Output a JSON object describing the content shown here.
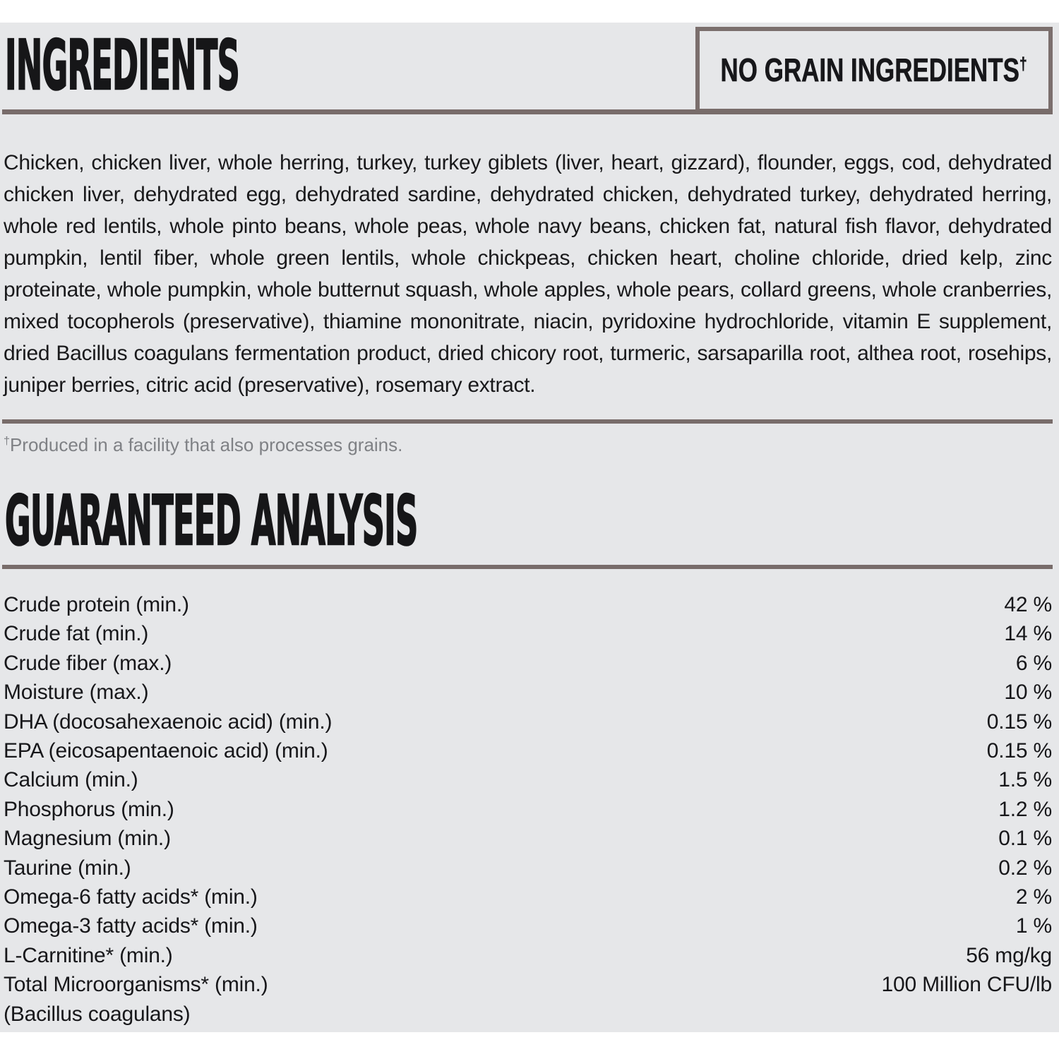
{
  "colors": {
    "panel_bg": "#e6e7e9",
    "rule": "#786c6a",
    "text": "#1b1b1d",
    "footnote_gray": "#7f8185",
    "badge_border": "#7b6f6d"
  },
  "ingredients": {
    "title": "INGREDIENTS",
    "badge_text": "NO GRAIN INGREDIENTS",
    "badge_dagger": "†",
    "body": "Chicken, chicken liver, whole herring, turkey, turkey giblets (liver, heart, gizzard), flounder, eggs, cod, dehydrated chicken liver, dehydrated egg, dehydrated sardine, dehydrated chicken, dehydrated turkey, dehydrated herring, whole red lentils, whole pinto beans, whole peas, whole navy beans, chicken fat, natural fish flavor, dehydrated pumpkin, lentil fiber, whole green lentils, whole chickpeas, chicken heart, choline chloride, dried kelp, zinc proteinate, whole pumpkin, whole butternut squash, whole apples, whole pears, collard greens, whole cranberries, mixed tocopherols (preservative), thiamine mononitrate, niacin, pyridoxine hydrochloride, vitamin E supplement, dried Bacillus coagulans fermentation product, dried chicory root, turmeric, sarsaparilla root, althea root, rosehips, juniper berries, citric acid (preservative), rosemary extract.",
    "footnote_dagger": "†",
    "footnote_text": "Produced in a facility that also processes grains."
  },
  "analysis": {
    "title": "GUARANTEED ANALYSIS",
    "rows": [
      {
        "label": "Crude protein (min.)",
        "value": "42 %"
      },
      {
        "label": "Crude fat (min.)",
        "value": "14 %"
      },
      {
        "label": "Crude fiber (max.)",
        "value": "6 %"
      },
      {
        "label": "Moisture (max.)",
        "value": "10 %"
      },
      {
        "label": "DHA (docosahexaenoic acid) (min.)",
        "value": "0.15 %"
      },
      {
        "label": "EPA (eicosapentaenoic acid) (min.)",
        "value": "0.15 %"
      },
      {
        "label": "Calcium (min.)",
        "value": "1.5 %"
      },
      {
        "label": "Phosphorus (min.)",
        "value": "1.2 %"
      },
      {
        "label": "Magnesium (min.)",
        "value": "0.1 %"
      },
      {
        "label": "Taurine (min.)",
        "value": "0.2 %"
      },
      {
        "label": "Omega-6 fatty acids* (min.)",
        "value": "2 %"
      },
      {
        "label": "Omega-3 fatty acids* (min.)",
        "value": "1 %"
      },
      {
        "label": "L-Carnitine* (min.)",
        "value": "56 mg/kg"
      },
      {
        "label": "Total Microorganisms* (min.)",
        "value": "100 Million CFU/lb"
      },
      {
        "label": "(Bacillus coagulans)",
        "value": ""
      }
    ]
  }
}
